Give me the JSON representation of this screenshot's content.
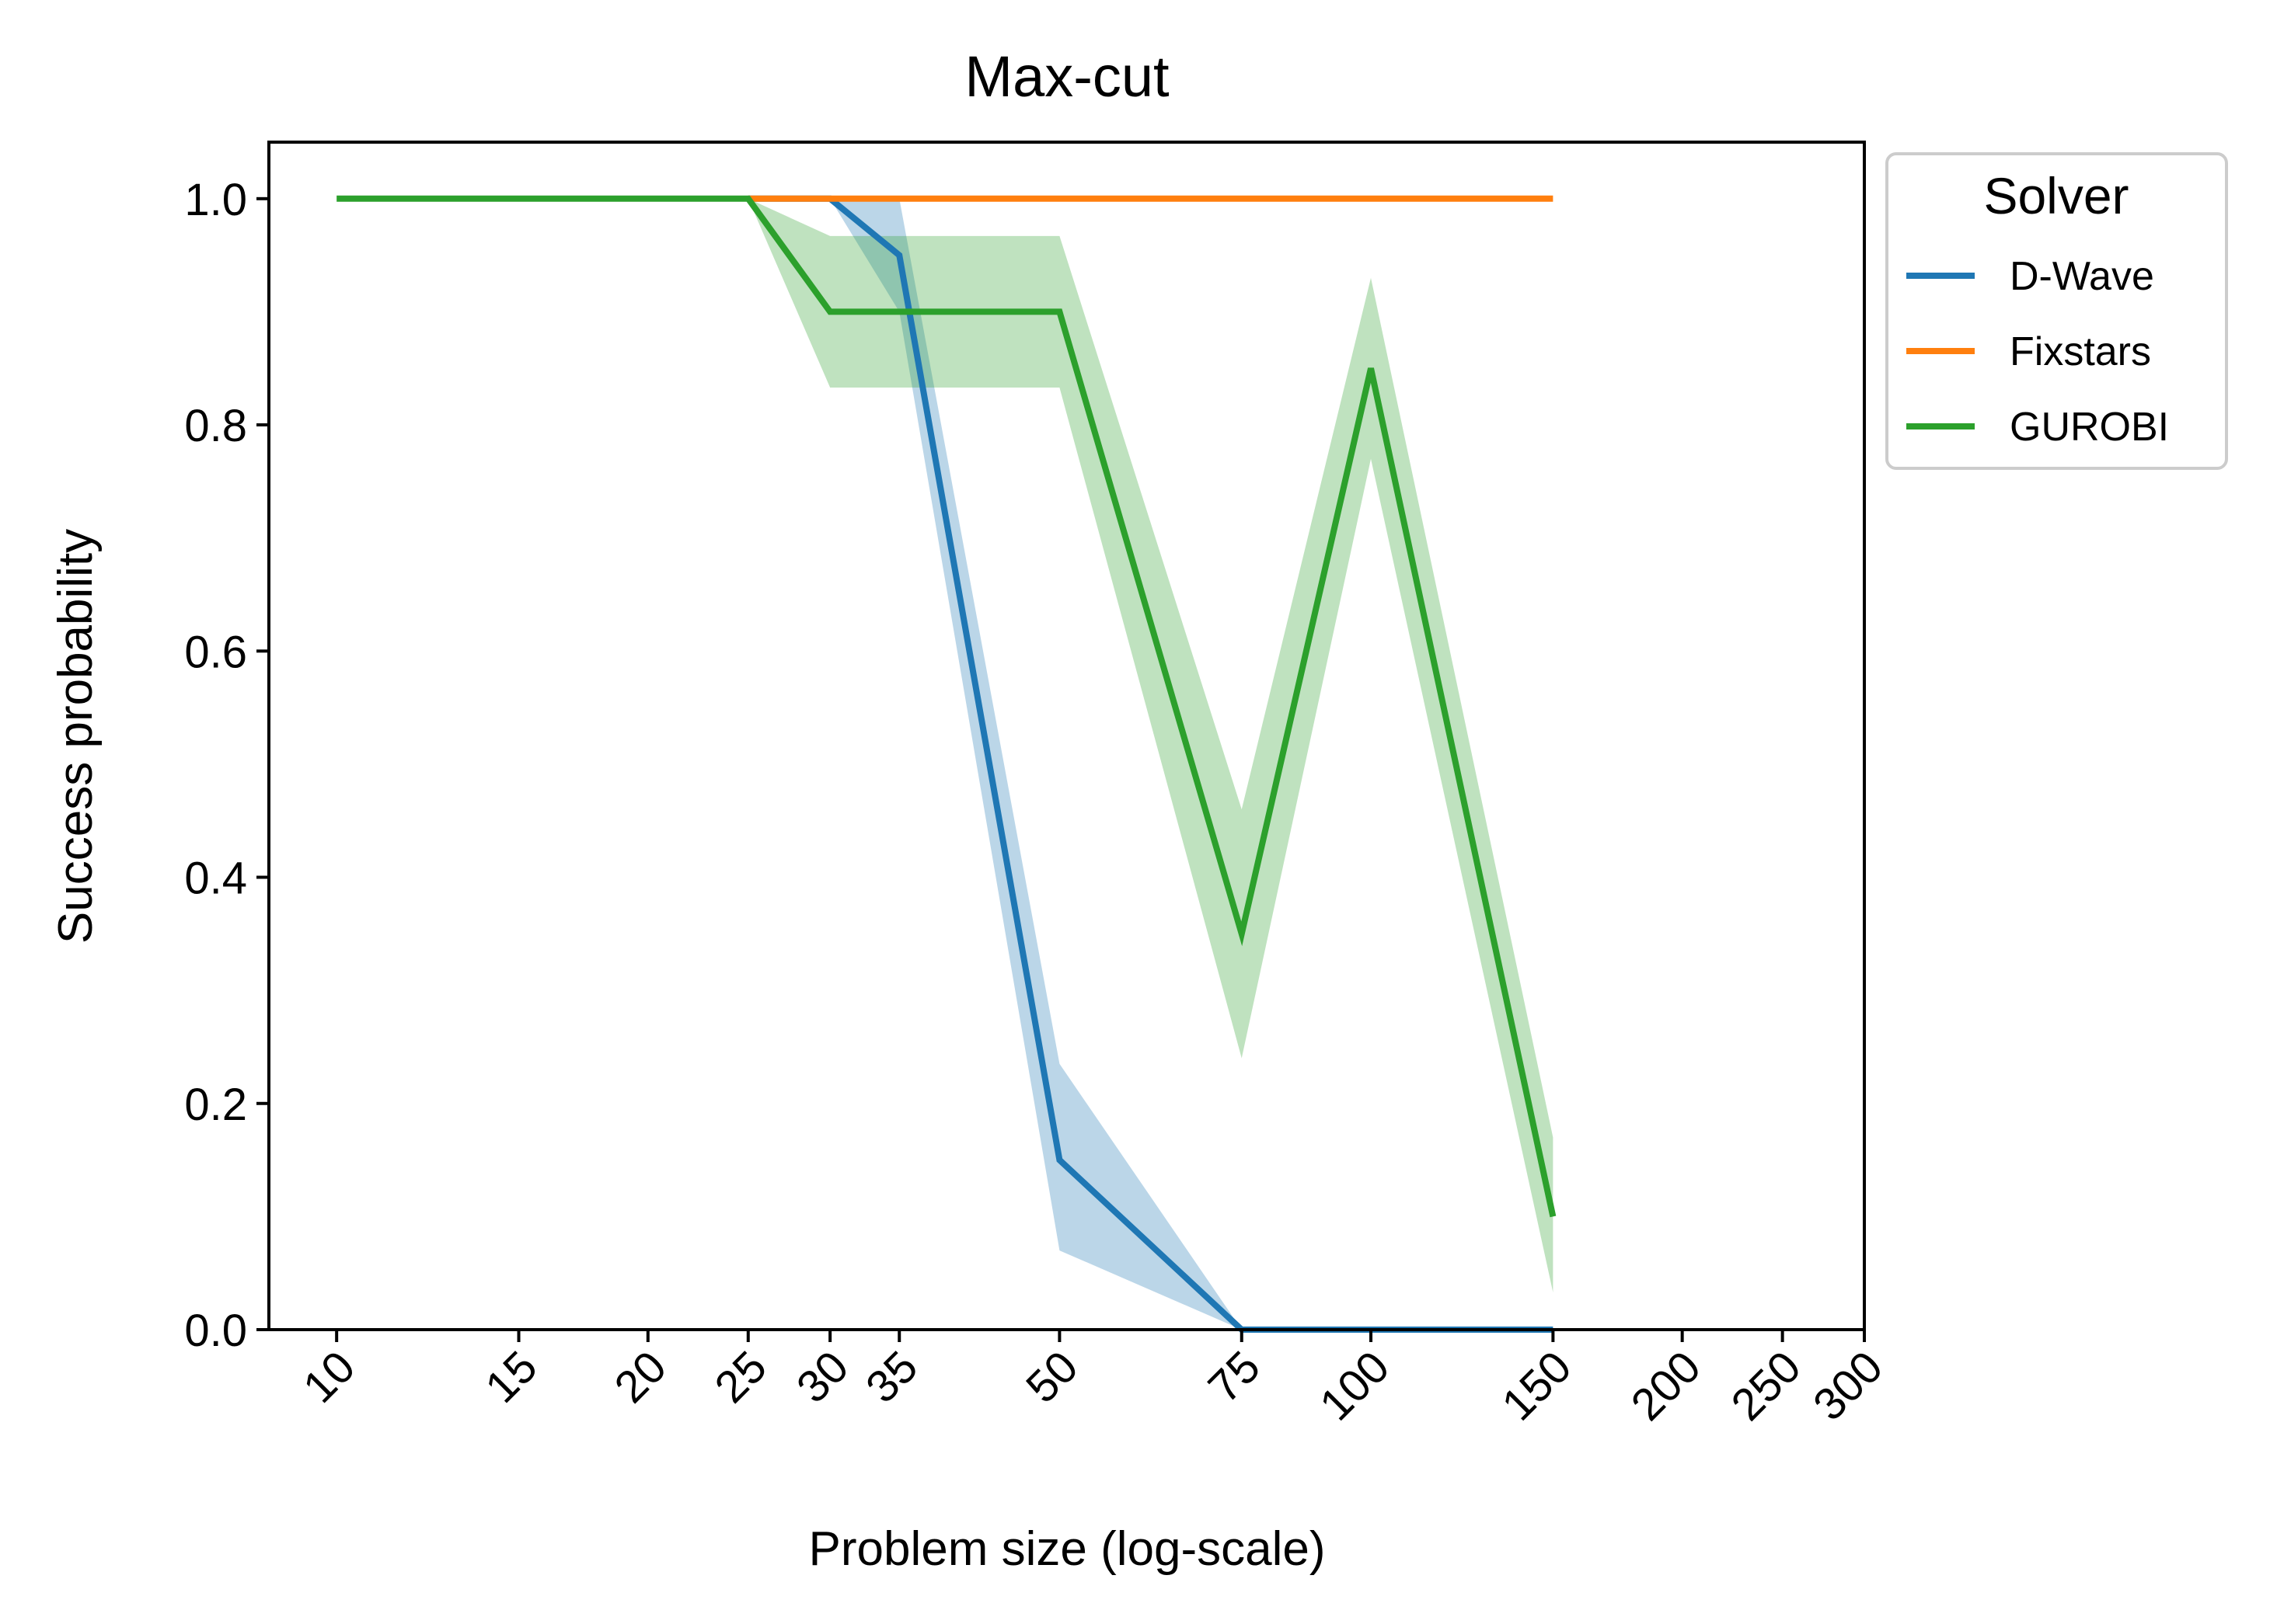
{
  "chart_data": {
    "type": "line",
    "title": "Max-cut",
    "xlabel": "Problem size (log-scale)",
    "ylabel": "Success probability",
    "xscale": "log",
    "xlim": [
      8.6,
      300
    ],
    "ylim": [
      0,
      1.05
    ],
    "xticks": [
      10,
      15,
      20,
      25,
      30,
      35,
      50,
      75,
      100,
      150,
      200,
      250,
      300
    ],
    "xtick_labels": [
      "10",
      "15",
      "20",
      "25",
      "30",
      "35",
      "50",
      "75",
      "100",
      "150",
      "200",
      "250",
      "300"
    ],
    "yticks": [
      0,
      0.2,
      0.4,
      0.6,
      0.8,
      1.0
    ],
    "ytick_labels": [
      "0.0",
      "0.2",
      "0.4",
      "0.6",
      "0.8",
      "1.0"
    ],
    "grid": false,
    "legend": {
      "title": "Solver",
      "placement": "outside-upper-right"
    },
    "series": [
      {
        "name": "D-Wave",
        "color": "#1f77b4",
        "x": [
          25,
          30,
          35,
          50,
          75,
          100,
          150
        ],
        "y": [
          1.0,
          1.0,
          0.95,
          0.15,
          0.0,
          0.0,
          0.0
        ],
        "ci_lower": [
          1.0,
          1.0,
          0.9,
          0.07,
          0.0,
          0.0,
          0.0
        ],
        "ci_upper": [
          1.0,
          1.0,
          1.0,
          0.235,
          0.0,
          0.0,
          0.0
        ]
      },
      {
        "name": "Fixstars",
        "color": "#ff7f0e",
        "x": [
          25,
          30,
          35,
          50,
          75,
          100,
          150
        ],
        "y": [
          1.0,
          1.0,
          1.0,
          1.0,
          1.0,
          1.0,
          1.0
        ],
        "ci_lower": [
          1.0,
          1.0,
          1.0,
          1.0,
          1.0,
          1.0,
          1.0
        ],
        "ci_upper": [
          1.0,
          1.0,
          1.0,
          1.0,
          1.0,
          1.0,
          1.0
        ]
      },
      {
        "name": "GUROBI",
        "color": "#2ca02c",
        "x": [
          10,
          15,
          20,
          25,
          30,
          35,
          50,
          75,
          100,
          150
        ],
        "y": [
          1.0,
          1.0,
          1.0,
          1.0,
          0.9,
          0.9,
          0.9,
          0.35,
          0.85,
          0.1
        ],
        "ci_lower": [
          1.0,
          1.0,
          1.0,
          1.0,
          0.833,
          0.833,
          0.833,
          0.24,
          0.77,
          0.033
        ],
        "ci_upper": [
          1.0,
          1.0,
          1.0,
          1.0,
          0.967,
          0.967,
          0.967,
          0.46,
          0.93,
          0.17
        ]
      }
    ]
  }
}
